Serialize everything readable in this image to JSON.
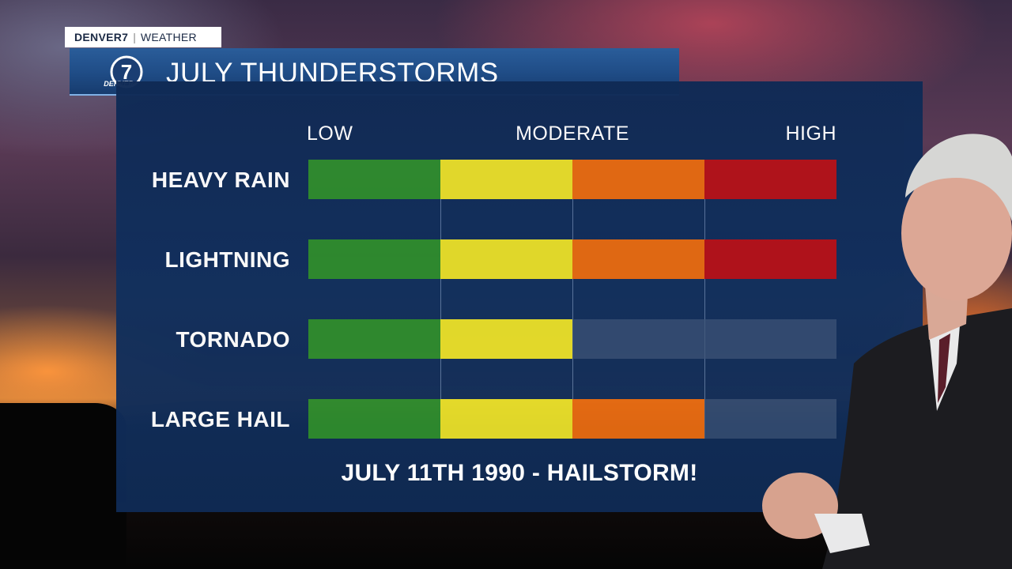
{
  "brand": {
    "station": "DENVER7",
    "section": "WEATHER"
  },
  "title": "JULY THUNDERSTORMS",
  "logo": {
    "numeral": "7",
    "text": "DENVER"
  },
  "footnote": "JULY 11TH 1990 - HAILSTORM!",
  "colors": {
    "level1": "#2e8b2e",
    "level2": "#e6dd2a",
    "level3": "#e56a12",
    "level4": "#b3121a",
    "empty": "#3c5478",
    "panel": "#12305e"
  },
  "chart_data": {
    "type": "bar",
    "scale_labels": [
      "LOW",
      "MODERATE",
      "HIGH"
    ],
    "max_level": 4,
    "categories": [
      "HEAVY RAIN",
      "LIGHTNING",
      "TORNADO",
      "LARGE HAIL"
    ],
    "values": [
      4,
      4,
      2,
      3
    ]
  }
}
